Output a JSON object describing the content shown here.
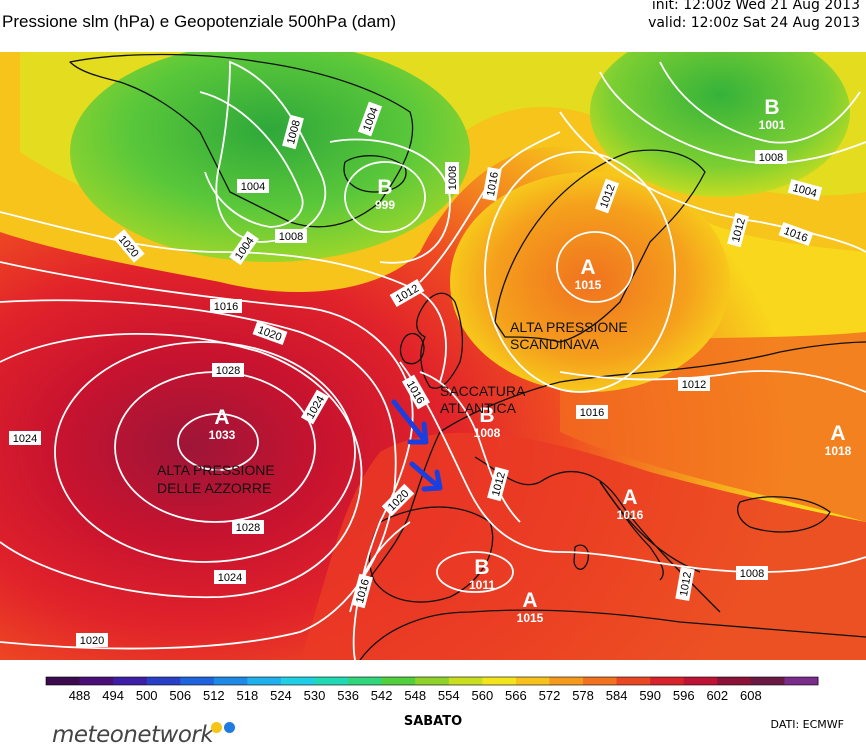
{
  "header": {
    "title": "Pressione slm (hPa) e Geopotenziale 500hPa (dam)",
    "init": "init: 12:00z Wed 21 Aug 2013",
    "valid": "valid: 12:00z Sat 24 Aug 2013"
  },
  "isobar_labels": [
    "1008",
    "1004",
    "1004",
    "1008",
    "1016",
    "1012",
    "1008",
    "1004",
    "1012",
    "1016",
    "1020",
    "1004",
    "1008",
    "1016",
    "1012",
    "1020",
    "1024",
    "1028",
    "1024",
    "1016",
    "1016",
    "1012",
    "1012",
    "1020",
    "1028",
    "1024",
    "1020",
    "1016",
    "1008",
    "1012"
  ],
  "pressure_centers": [
    {
      "letter": "B",
      "value": "1001",
      "color": "#ffffff"
    },
    {
      "letter": "B",
      "value": "999",
      "color": "#ffffff"
    },
    {
      "letter": "A",
      "value": "1015",
      "color": "#ffffff"
    },
    {
      "letter": "A",
      "value": "1033",
      "color": "#ffffff"
    },
    {
      "letter": "B",
      "value": "1008",
      "color": "#ffffff"
    },
    {
      "letter": "A",
      "value": "1016",
      "color": "#ffffff"
    },
    {
      "letter": "B",
      "value": "1011",
      "color": "#ffffff"
    },
    {
      "letter": "A",
      "value": "1015",
      "color": "#ffffff"
    },
    {
      "letter": "A",
      "value": "1018",
      "color": "#ffffff"
    }
  ],
  "annotations": {
    "scandinavia_line1": "ALTA PRESSIONE",
    "scandinavia_line2": "SCANDINAVA",
    "saccatura_line1": "SACCATURA",
    "saccatura_line2": "ATLANTICA",
    "azzorre_line1": "ALTA PRESSIONE",
    "azzorre_line2": "DELLE AZZORRE"
  },
  "arrow_color": "#1a3fe0",
  "colorbar": {
    "ticks": [
      "488",
      "494",
      "500",
      "506",
      "512",
      "518",
      "524",
      "530",
      "536",
      "542",
      "548",
      "554",
      "560",
      "566",
      "572",
      "578",
      "584",
      "590",
      "596",
      "602",
      "608"
    ],
    "colors": [
      "#3b0a4f",
      "#4a1078",
      "#3c1fa6",
      "#2a3fc8",
      "#1f63de",
      "#1d8ae8",
      "#1fb1ee",
      "#20cfe6",
      "#22d9b5",
      "#2fd67c",
      "#52cf3c",
      "#8fd22a",
      "#c9de1f",
      "#f3e51c",
      "#f7c21b",
      "#f59a1c",
      "#f27220",
      "#e94723",
      "#d8232a",
      "#bf1335",
      "#8c1237",
      "#6a1a42",
      "#7a2c8a"
    ]
  },
  "footer": {
    "day": "SABATO",
    "source": "DATI: ECMWF",
    "logo": "meteonetwork",
    "logo_dot_colors": [
      "#f5c518",
      "#1f7be0"
    ]
  }
}
